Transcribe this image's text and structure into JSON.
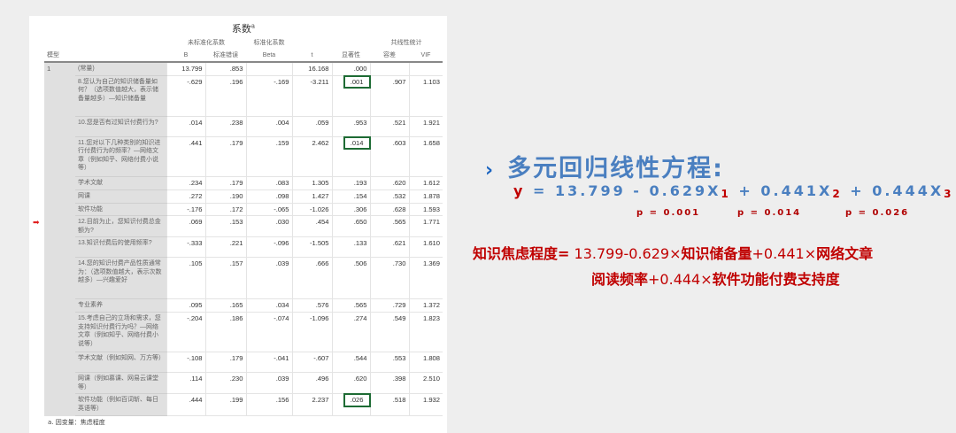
{
  "table": {
    "title": "系数",
    "title_sup": "a",
    "group_unstd": "未标准化系数",
    "group_std": "标准化系数",
    "group_col": "共线性统计",
    "col_model": "模型",
    "col_b": "B",
    "col_se": "标准错误",
    "col_beta": "Beta",
    "col_t": "t",
    "col_sig": "显著性",
    "col_tol": "容差",
    "col_vif": "VIF",
    "model": "1",
    "rows": [
      {
        "var": "(常量)",
        "b": "13.799",
        "se": ".853",
        "beta": "",
        "t": "16.168",
        "sig": ".000",
        "tol": "",
        "vif": "",
        "boxed": false
      },
      {
        "var": "8.您认为自己的知识储备量如何？（选项数值越大，表示储备量越多）—知识储备量",
        "b": "-.629",
        "se": ".196",
        "beta": "-.169",
        "t": "-3.211",
        "sig": ".001",
        "tol": ".907",
        "vif": "1.103",
        "boxed": true
      },
      {
        "var": "10.您是否有过知识付费行为?",
        "b": ".014",
        "se": ".238",
        "beta": ".004",
        "t": ".059",
        "sig": ".953",
        "tol": ".521",
        "vif": "1.921",
        "boxed": false
      },
      {
        "var": "11.您对以下几种类别的知识进行付费行为的频率？—网络文章（例如知乎、网络付费小说等）",
        "b": ".441",
        "se": ".179",
        "beta": ".159",
        "t": "2.462",
        "sig": ".014",
        "tol": ".603",
        "vif": "1.658",
        "boxed": true
      },
      {
        "var": "学术文献",
        "b": ".234",
        "se": ".179",
        "beta": ".083",
        "t": "1.305",
        "sig": ".193",
        "tol": ".620",
        "vif": "1.612",
        "boxed": false
      },
      {
        "var": "网课",
        "b": ".272",
        "se": ".190",
        "beta": ".098",
        "t": "1.427",
        "sig": ".154",
        "tol": ".532",
        "vif": "1.878",
        "boxed": false
      },
      {
        "var": "软件功能",
        "b": "-.176",
        "se": ".172",
        "beta": "-.065",
        "t": "-1.026",
        "sig": ".306",
        "tol": ".628",
        "vif": "1.593",
        "boxed": false
      },
      {
        "var": "12.目前为止，您知识付费总金额为?",
        "b": ".069",
        "se": ".153",
        "beta": ".030",
        "t": ".454",
        "sig": ".650",
        "tol": ".565",
        "vif": "1.771",
        "boxed": false
      },
      {
        "var": "13.知识付费后的使用频率?",
        "b": "-.333",
        "se": ".221",
        "beta": "-.096",
        "t": "-1.505",
        "sig": ".133",
        "tol": ".621",
        "vif": "1.610",
        "boxed": false
      },
      {
        "var": "14.您的知识付费产品性质通常为：（选项数值越大，表示次数越多）—兴趣爱好",
        "b": ".105",
        "se": ".157",
        "beta": ".039",
        "t": ".666",
        "sig": ".506",
        "tol": ".730",
        "vif": "1.369",
        "boxed": false
      },
      {
        "var": "专业素养",
        "b": ".095",
        "se": ".165",
        "beta": ".034",
        "t": ".576",
        "sig": ".565",
        "tol": ".729",
        "vif": "1.372",
        "boxed": false
      },
      {
        "var": "15.考虑自己的立场和需求，您支持知识付费行为吗？—网络文章（例如知乎、网络付费小说等）",
        "b": "-.204",
        "se": ".186",
        "beta": "-.074",
        "t": "-1.096",
        "sig": ".274",
        "tol": ".549",
        "vif": "1.823",
        "boxed": false
      },
      {
        "var": "学术文献（例如知网、万方等）",
        "b": "-.108",
        "se": ".179",
        "beta": "-.041",
        "t": "-.607",
        "sig": ".544",
        "tol": ".553",
        "vif": "1.808",
        "boxed": false
      },
      {
        "var": "网课（例如慕课、网易云课堂等）",
        "b": ".114",
        "se": ".230",
        "beta": ".039",
        "t": ".496",
        "sig": ".620",
        "tol": ".398",
        "vif": "2.510",
        "boxed": false
      },
      {
        "var": "软件功能（例如百词斩、每日英语等）",
        "b": ".444",
        "se": ".199",
        "beta": ".156",
        "t": "2.237",
        "sig": ".026",
        "tol": ".518",
        "vif": "1.932",
        "boxed": true
      }
    ],
    "footnote": "a. 因变量：焦虑程度",
    "marker": "➡"
  },
  "slide": {
    "heading": "多元回归线性方程:",
    "chevron": "›",
    "eq_y": "y",
    "eq_body1": " = 13.799 - 0.629X",
    "sub1": "1",
    "eq_body2": " + 0.441X",
    "sub2": "2",
    "eq_body3": " + 0.444X",
    "sub3": "3",
    "p1": "p = 0.001",
    "p2": "p = 0.014",
    "p3": "p = 0.026",
    "f_label": "知识焦虑程度=",
    "f_a": " 13.799-0.629×",
    "f_b": "知识储备量",
    "f_c": "+0.441×",
    "f_d": "网络文章",
    "f_e": "阅读频率",
    "f_f": "+0.444×",
    "f_g": "软件功能付费支持度",
    "colors": {
      "blue": "#4a7fc0",
      "red": "#c00000",
      "box_green": "#1e6b34"
    }
  }
}
